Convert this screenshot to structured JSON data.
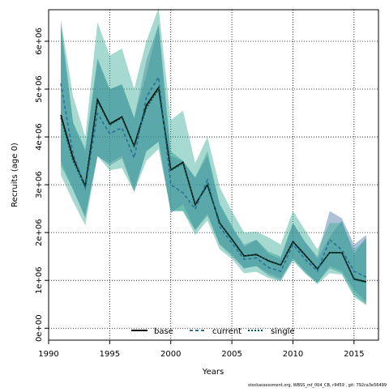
{
  "chart_data": {
    "type": "line",
    "xlabel": "Years",
    "ylabel": "Recruits (age 0)",
    "footer": "stockassessment.org, WBSS_mf_004_CB, r9459 , git: 792ca3e56499",
    "x": [
      1991,
      1992,
      1993,
      1994,
      1995,
      1996,
      1997,
      1998,
      1999,
      2000,
      2001,
      2002,
      2003,
      2004,
      2005,
      2006,
      2007,
      2008,
      2009,
      2010,
      2011,
      2012,
      2013,
      2014,
      2015,
      2016
    ],
    "xlim": [
      1990,
      2017
    ],
    "xticks": [
      1990,
      1995,
      2000,
      2005,
      2010,
      2015
    ],
    "ylim": [
      -250000,
      6660000
    ],
    "yticks": [
      {
        "value": 0,
        "label": "0e+00"
      },
      {
        "value": 1000000,
        "label": "1e+06"
      },
      {
        "value": 2000000,
        "label": "2e+06"
      },
      {
        "value": 3000000,
        "label": "3e+06"
      },
      {
        "value": 4000000,
        "label": "4e+06"
      },
      {
        "value": 5000000,
        "label": "5e+06"
      },
      {
        "value": 6000000,
        "label": "6e+06"
      }
    ],
    "grid": true,
    "legend": "bottom",
    "series": [
      {
        "name": "base",
        "color": "#000000",
        "linestyle": "solid",
        "band_color": "#1f8f86",
        "values": [
          4460000,
          3560000,
          2970000,
          4780000,
          4270000,
          4420000,
          3810000,
          4660000,
          5030000,
          3310000,
          3470000,
          2580000,
          3000000,
          2200000,
          1860000,
          1510000,
          1540000,
          1410000,
          1320000,
          1810000,
          1530000,
          1240000,
          1580000,
          1580000,
          1030000,
          970000
        ],
        "lower": [
          3400000,
          2900000,
          2350000,
          3600000,
          3450000,
          3600000,
          2900000,
          3700000,
          3900000,
          2450000,
          2450000,
          2050000,
          2350000,
          1750000,
          1550000,
          1250000,
          1300000,
          1150000,
          1050000,
          1450000,
          1200000,
          950000,
          1250000,
          1150000,
          700000,
          500000
        ],
        "upper": [
          6300000,
          4300000,
          3750000,
          5650000,
          5000000,
          5100000,
          4400000,
          5300000,
          6350000,
          3700000,
          3500000,
          3150000,
          3700000,
          2600000,
          2150000,
          1700000,
          1850000,
          1600000,
          1500000,
          2200000,
          1800000,
          1450000,
          1900000,
          2250000,
          1550000,
          1900000
        ]
      },
      {
        "name": "current",
        "color": "#2a6f97",
        "linestyle": "dashed",
        "band_color": "#4a78a8",
        "values": [
          5120000,
          3640000,
          2930000,
          4490000,
          4070000,
          4190000,
          3560000,
          4830000,
          5250000,
          3000000,
          2830000,
          2490000,
          3100000,
          2120000,
          1780000,
          1440000,
          1470000,
          1270000,
          1190000,
          1750000,
          1440000,
          1190000,
          1850000,
          1640000,
          1190000,
          1070000
        ],
        "lower": [
          3500000,
          2900000,
          2300000,
          3600000,
          3400000,
          3550000,
          2850000,
          3700000,
          3900000,
          2400000,
          2600000,
          2050000,
          2400000,
          1750000,
          1500000,
          1250000,
          1300000,
          1100000,
          1000000,
          1450000,
          1150000,
          950000,
          1300000,
          1200000,
          800000,
          550000
        ],
        "upper": [
          6400000,
          4300000,
          3700000,
          5600000,
          5000000,
          5100000,
          4400000,
          5600000,
          6350000,
          3600000,
          3500000,
          3150000,
          3600000,
          2600000,
          2100000,
          1750000,
          1850000,
          1550000,
          1450000,
          2200000,
          1800000,
          1500000,
          2450000,
          2300000,
          1750000,
          1950000
        ]
      },
      {
        "name": "single",
        "color": "#00584a",
        "linestyle": "dotted",
        "band_color": "#3aaa94",
        "values": [
          4400000,
          3500000,
          2950000,
          4750000,
          4250000,
          4400000,
          3800000,
          4600000,
          5000000,
          3300000,
          3450000,
          2600000,
          3000000,
          2200000,
          1850000,
          1500000,
          1550000,
          1400000,
          1320000,
          1800000,
          1520000,
          1250000,
          1580000,
          1580000,
          1020000,
          960000
        ],
        "lower": [
          3200000,
          2650000,
          2150000,
          3600000,
          3300000,
          3350000,
          2850000,
          3500000,
          3750000,
          2450000,
          2450000,
          1950000,
          2250000,
          1650000,
          1450000,
          1150000,
          1180000,
          1050000,
          980000,
          1400000,
          1150000,
          920000,
          1150000,
          1120000,
          650000,
          480000
        ],
        "upper": [
          6450000,
          4850000,
          4000000,
          6400000,
          5700000,
          5850000,
          5000000,
          6000000,
          6700000,
          4350000,
          4550000,
          3450000,
          4000000,
          2950000,
          2450000,
          2000000,
          2020000,
          1900000,
          1750000,
          2450000,
          2050000,
          1650000,
          2200000,
          2200000,
          1650000,
          1850000
        ]
      }
    ]
  }
}
